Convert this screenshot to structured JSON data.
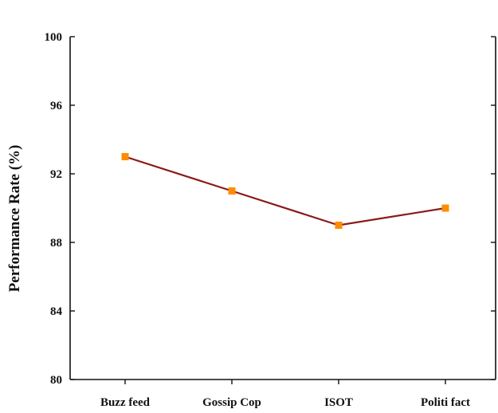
{
  "chart_data": {
    "type": "line",
    "title": "",
    "xlabel": "",
    "ylabel": "Performance Rate (%)",
    "categories": [
      "Buzz feed",
      "Gossip Cop",
      "ISOT",
      "Politi fact"
    ],
    "series": [
      {
        "values": [
          93,
          91,
          89,
          90
        ]
      }
    ],
    "ylim": [
      80,
      100
    ],
    "yticks": [
      80,
      84,
      88,
      92,
      96,
      100
    ],
    "grid": false,
    "legend": "none",
    "colors": {
      "line": "#8b1a1a",
      "marker": "#ff8c00",
      "axis": "#111111"
    }
  }
}
